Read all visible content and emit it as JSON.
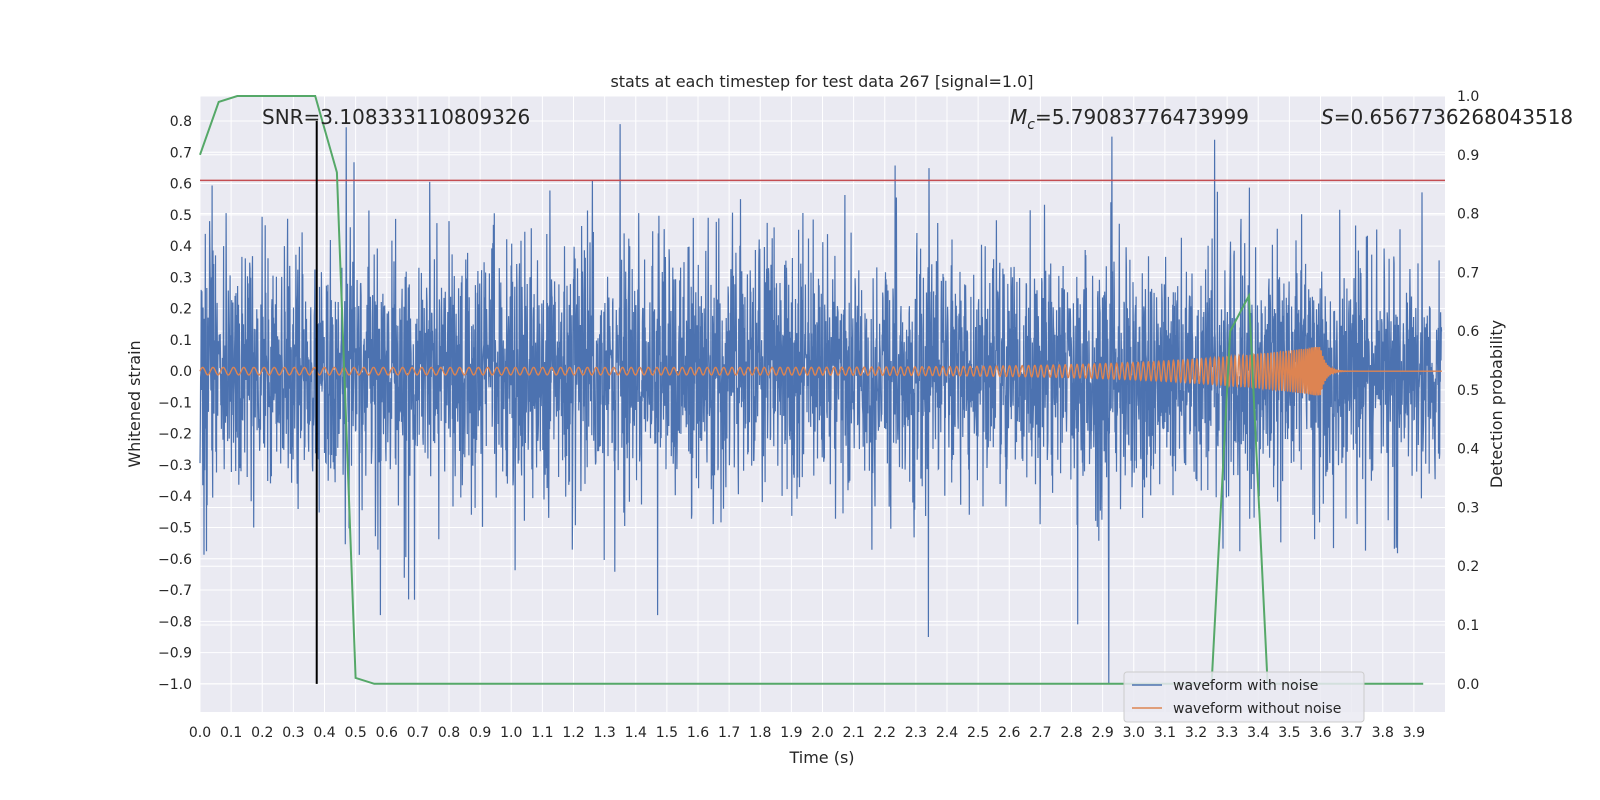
{
  "chart_data": {
    "type": "line",
    "title": "stats at each timestep for test data 267 [signal=1.0]",
    "xlabel": "Time (s)",
    "ylabel": "Whitened strain",
    "ylabel_right": "Detection probability",
    "xlim": [
      0.0,
      4.0
    ],
    "ylim": [
      -1.09,
      0.88
    ],
    "ylim_right": [
      -0.048,
      1.0
    ],
    "grid": true,
    "x_ticks": [
      "0.0",
      "0.1",
      "0.2",
      "0.3",
      "0.4",
      "0.5",
      "0.6",
      "0.7",
      "0.8",
      "0.9",
      "1.0",
      "1.1",
      "1.2",
      "1.3",
      "1.4",
      "1.5",
      "1.6",
      "1.7",
      "1.8",
      "1.9",
      "2.0",
      "2.1",
      "2.2",
      "2.3",
      "2.4",
      "2.5",
      "2.6",
      "2.7",
      "2.8",
      "2.9",
      "3.0",
      "3.1",
      "3.2",
      "3.3",
      "3.4",
      "3.5",
      "3.6",
      "3.7",
      "3.8",
      "3.9"
    ],
    "y_ticks": [
      "0.8",
      "0.7",
      "0.6",
      "0.5",
      "0.4",
      "0.3",
      "0.2",
      "0.1",
      "0.0",
      "−0.1",
      "−0.2",
      "−0.3",
      "−0.4",
      "−0.5",
      "−0.6",
      "−0.7",
      "−0.8",
      "−0.9",
      "−1.0"
    ],
    "y_right_ticks": [
      "1.0",
      "0.9",
      "0.8",
      "0.7",
      "0.6",
      "0.5",
      "0.4",
      "0.3",
      "0.2",
      "0.1",
      "0.0"
    ],
    "annotations": {
      "snr": "SNR=3.108333110809326",
      "mc_symbol": "M",
      "mc_sub": "c",
      "mc_value": "=5.79083776473999",
      "s_symbol": "S",
      "s_value": "=0.6567736268043518"
    },
    "legend": {
      "placement": "lower-right",
      "entries": [
        "waveform with noise",
        "waveform without noise"
      ]
    },
    "colors": {
      "noise": "#4c72b0",
      "clean": "#dd8452",
      "probability": "#55a868",
      "threshold": "#c44e52",
      "marker": "#000000",
      "background": "#eaeaf2",
      "grid": "#ffffff"
    },
    "series": [
      {
        "name": "waveform with noise",
        "axis": "left",
        "description_values": {
          "noise_sigma": 0.2,
          "peak_spikes": [
            [
              0.47,
              0.78
            ],
            [
              1.35,
              0.79
            ],
            [
              2.93,
              0.75
            ],
            [
              3.26,
              0.74
            ],
            [
              2.92,
              -1.0
            ],
            [
              2.34,
              -0.85
            ],
            [
              1.47,
              -0.78
            ],
            [
              2.82,
              -0.81
            ],
            [
              0.58,
              -0.78
            ],
            [
              0.67,
              -0.73
            ]
          ]
        }
      },
      {
        "name": "waveform without noise",
        "axis": "left",
        "chirp": {
          "start": 0.0,
          "merger": 3.6,
          "amp_start": 0.012,
          "amp_peak": 0.08,
          "freq_start": 30,
          "freq_end": 190
        }
      },
      {
        "name": "detection probability",
        "axis": "right",
        "x": [
          0.0,
          0.06,
          0.12,
          0.19,
          0.25,
          0.31,
          0.37,
          0.44,
          0.5,
          0.56,
          0.62,
          3.18,
          3.25,
          3.31,
          3.37,
          3.43,
          3.5,
          3.56,
          3.93
        ],
        "values": [
          0.9,
          0.99,
          1.0,
          1.0,
          1.0,
          1.0,
          1.0,
          0.87,
          0.01,
          0.0,
          0.0,
          0.0,
          0.0,
          0.6,
          0.66,
          0.0,
          0.0,
          0.0,
          0.0
        ]
      }
    ],
    "threshold_line": {
      "axis": "left",
      "value": 0.61
    },
    "marker_line": {
      "x": 0.375,
      "y_from": -1.0,
      "y_to": 0.8
    }
  }
}
